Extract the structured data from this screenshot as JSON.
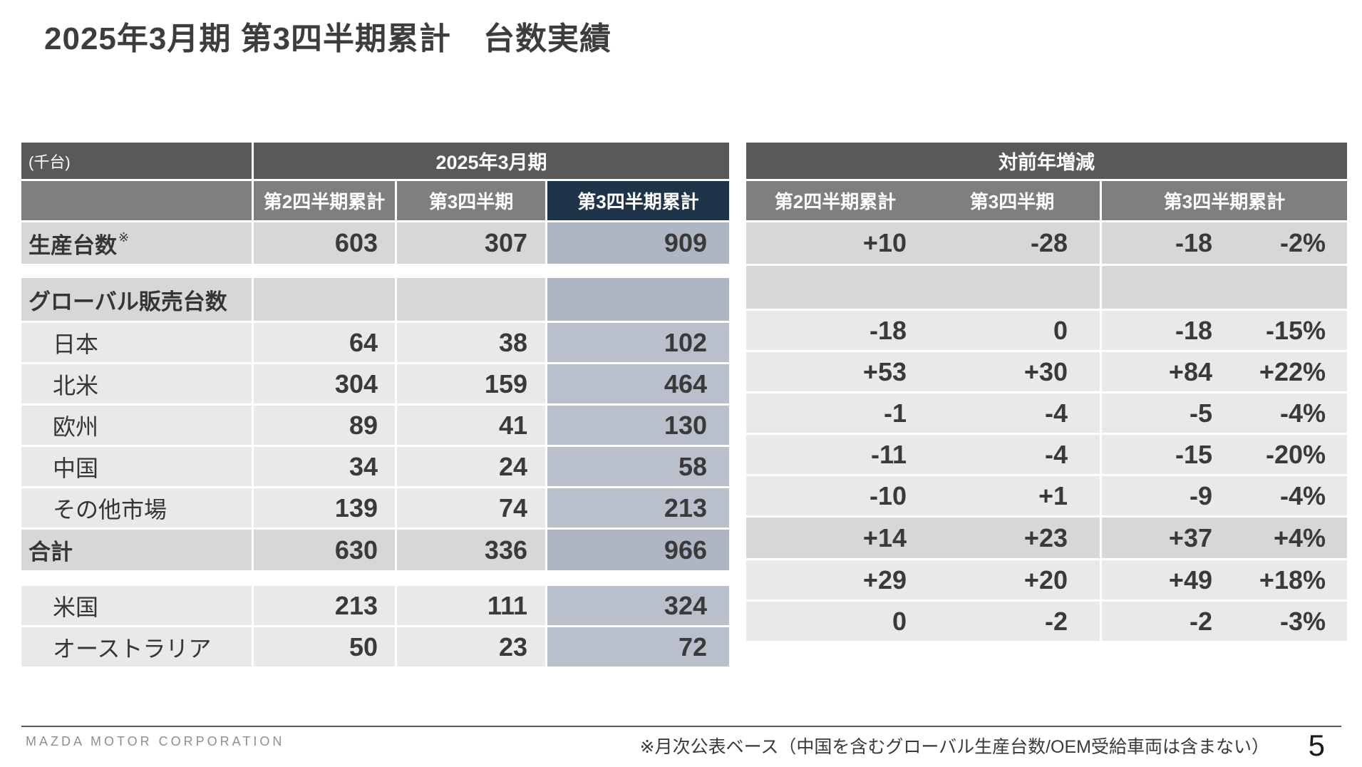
{
  "title": "2025年3月期 第3四半期累計　台数実績",
  "unit_label": "(千台)",
  "left_table": {
    "header": "2025年3月期",
    "columns": [
      "第2四半期累計",
      "第3四半期",
      "第3四半期累計"
    ]
  },
  "right_table": {
    "header": "対前年増減",
    "columns": [
      "第2四半期累計",
      "第3四半期",
      "第3四半期累計"
    ]
  },
  "rows": {
    "production": {
      "label": "生産台数",
      "sup": "※",
      "q2": "603",
      "q3": "307",
      "q3cum": "909",
      "d_q2": "+10",
      "d_q3": "-28",
      "d_cum": "-18",
      "d_pct": "-2%"
    },
    "global_header": {
      "label": "グローバル販売台数",
      "q2": "",
      "q3": "",
      "q3cum": "",
      "d_q2": "",
      "d_q3": "",
      "d_cum": "",
      "d_pct": ""
    },
    "japan": {
      "label": "日本",
      "q2": "64",
      "q3": "38",
      "q3cum": "102",
      "d_q2": "-18",
      "d_q3": "0",
      "d_cum": "-18",
      "d_pct": "-15%"
    },
    "north_america": {
      "label": "北米",
      "q2": "304",
      "q3": "159",
      "q3cum": "464",
      "d_q2": "+53",
      "d_q3": "+30",
      "d_cum": "+84",
      "d_pct": "+22%"
    },
    "europe": {
      "label": "欧州",
      "q2": "89",
      "q3": "41",
      "q3cum": "130",
      "d_q2": "-1",
      "d_q3": "-4",
      "d_cum": "-5",
      "d_pct": "-4%"
    },
    "china": {
      "label": "中国",
      "q2": "34",
      "q3": "24",
      "q3cum": "58",
      "d_q2": "-11",
      "d_q3": "-4",
      "d_cum": "-15",
      "d_pct": "-20%"
    },
    "other_markets": {
      "label": "その他市場",
      "q2": "139",
      "q3": "74",
      "q3cum": "213",
      "d_q2": "-10",
      "d_q3": "+1",
      "d_cum": "-9",
      "d_pct": "-4%"
    },
    "total": {
      "label": "合計",
      "q2": "630",
      "q3": "336",
      "q3cum": "966",
      "d_q2": "+14",
      "d_q3": "+23",
      "d_cum": "+37",
      "d_pct": "+4%"
    },
    "usa": {
      "label": "米国",
      "q2": "213",
      "q3": "111",
      "q3cum": "324",
      "d_q2": "+29",
      "d_q3": "+20",
      "d_cum": "+49",
      "d_pct": "+18%"
    },
    "australia": {
      "label": "オーストラリア",
      "q2": "50",
      "q3": "23",
      "q3cum": "72",
      "d_q2": "0",
      "d_q3": "-2",
      "d_cum": "-2",
      "d_pct": "-3%"
    }
  },
  "footer": {
    "company": "MAZDA MOTOR CORPORATION",
    "note": "※月次公表ベース（中国を含むグローバル生産台数/OEM受給車両は含まない）",
    "page": "5"
  }
}
